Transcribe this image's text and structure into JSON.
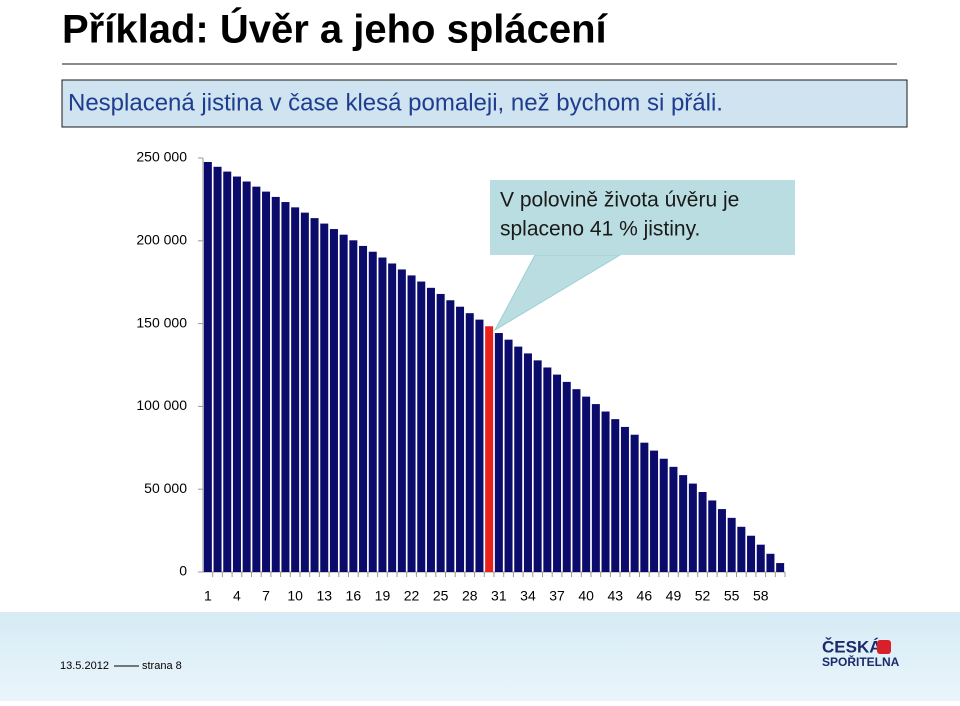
{
  "slide": {
    "footer": {
      "date": "13.5.2012",
      "page": "strana 8"
    },
    "logo": [
      "ČESKÁ",
      "SPOŘITELNA"
    ]
  },
  "chart_data": {
    "type": "bar",
    "title": "Příklad: Úvěr a jeho splácení",
    "subtitle": "Nesplacená jistina v čase klesá pomaleji, než bychom si přáli.",
    "annotation": [
      "V polovině života úvěru je",
      "splaceno 41 % jistiny."
    ],
    "categories": [
      1,
      null,
      null,
      4,
      null,
      null,
      7,
      null,
      null,
      10,
      null,
      null,
      13,
      null,
      null,
      16,
      null,
      null,
      19,
      null,
      null,
      22,
      null,
      null,
      25,
      null,
      null,
      28,
      null,
      null,
      31,
      null,
      null,
      34,
      null,
      null,
      37,
      null,
      null,
      40,
      null,
      null,
      43,
      null,
      null,
      46,
      null,
      null,
      49,
      null,
      null,
      52,
      null,
      null,
      55,
      null,
      null,
      58,
      null,
      null
    ],
    "values": [
      247600,
      244700,
      241800,
      238800,
      235800,
      232700,
      229700,
      226500,
      223400,
      220200,
      217000,
      213700,
      210400,
      207100,
      203700,
      200300,
      196900,
      193400,
      189900,
      186300,
      182700,
      179100,
      175400,
      171600,
      167900,
      164100,
      160200,
      156300,
      152400,
      148400,
      144300,
      140300,
      136100,
      132000,
      127800,
      123500,
      119200,
      114800,
      110400,
      105900,
      101400,
      96900,
      92300,
      87600,
      82900,
      78100,
      73300,
      68400,
      63500,
      58500,
      53400,
      48300,
      43200,
      38000,
      32700,
      27300,
      21900,
      16500,
      11000,
      5400
    ],
    "color": "#0b0b6b",
    "highlight_color": "#e8221b",
    "colors_override": {
      "30": "#e8221b"
    },
    "ylim": [
      0,
      250000
    ],
    "yticks": [
      0,
      {
        "value": 50000,
        "label": "50 000"
      },
      {
        "value": 100000,
        "label": "100 000"
      },
      {
        "value": 150000,
        "label": "150 000"
      },
      {
        "value": 200000,
        "label": "200 000"
      },
      {
        "value": 250000,
        "label": "250 000"
      }
    ],
    "grid": false
  }
}
